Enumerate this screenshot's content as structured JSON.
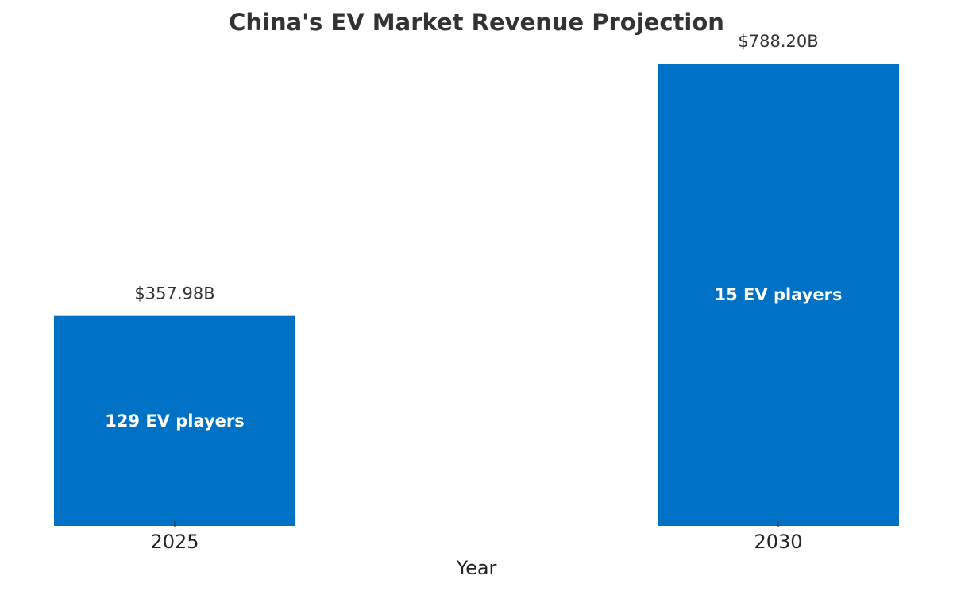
{
  "chart_data": {
    "type": "bar",
    "title": "China's EV Market Revenue Projection",
    "xlabel": "Year",
    "ylabel": "",
    "categories": [
      "2025",
      "2030"
    ],
    "values": [
      357.98,
      788.2
    ],
    "value_labels": [
      "$357.98B",
      "$788.20B"
    ],
    "bar_annotations": [
      "129 EV players",
      "15 EV players"
    ],
    "ylim": [
      0,
      788.2
    ],
    "grid": false,
    "legend": "none",
    "bar_color": "#0072C6"
  }
}
